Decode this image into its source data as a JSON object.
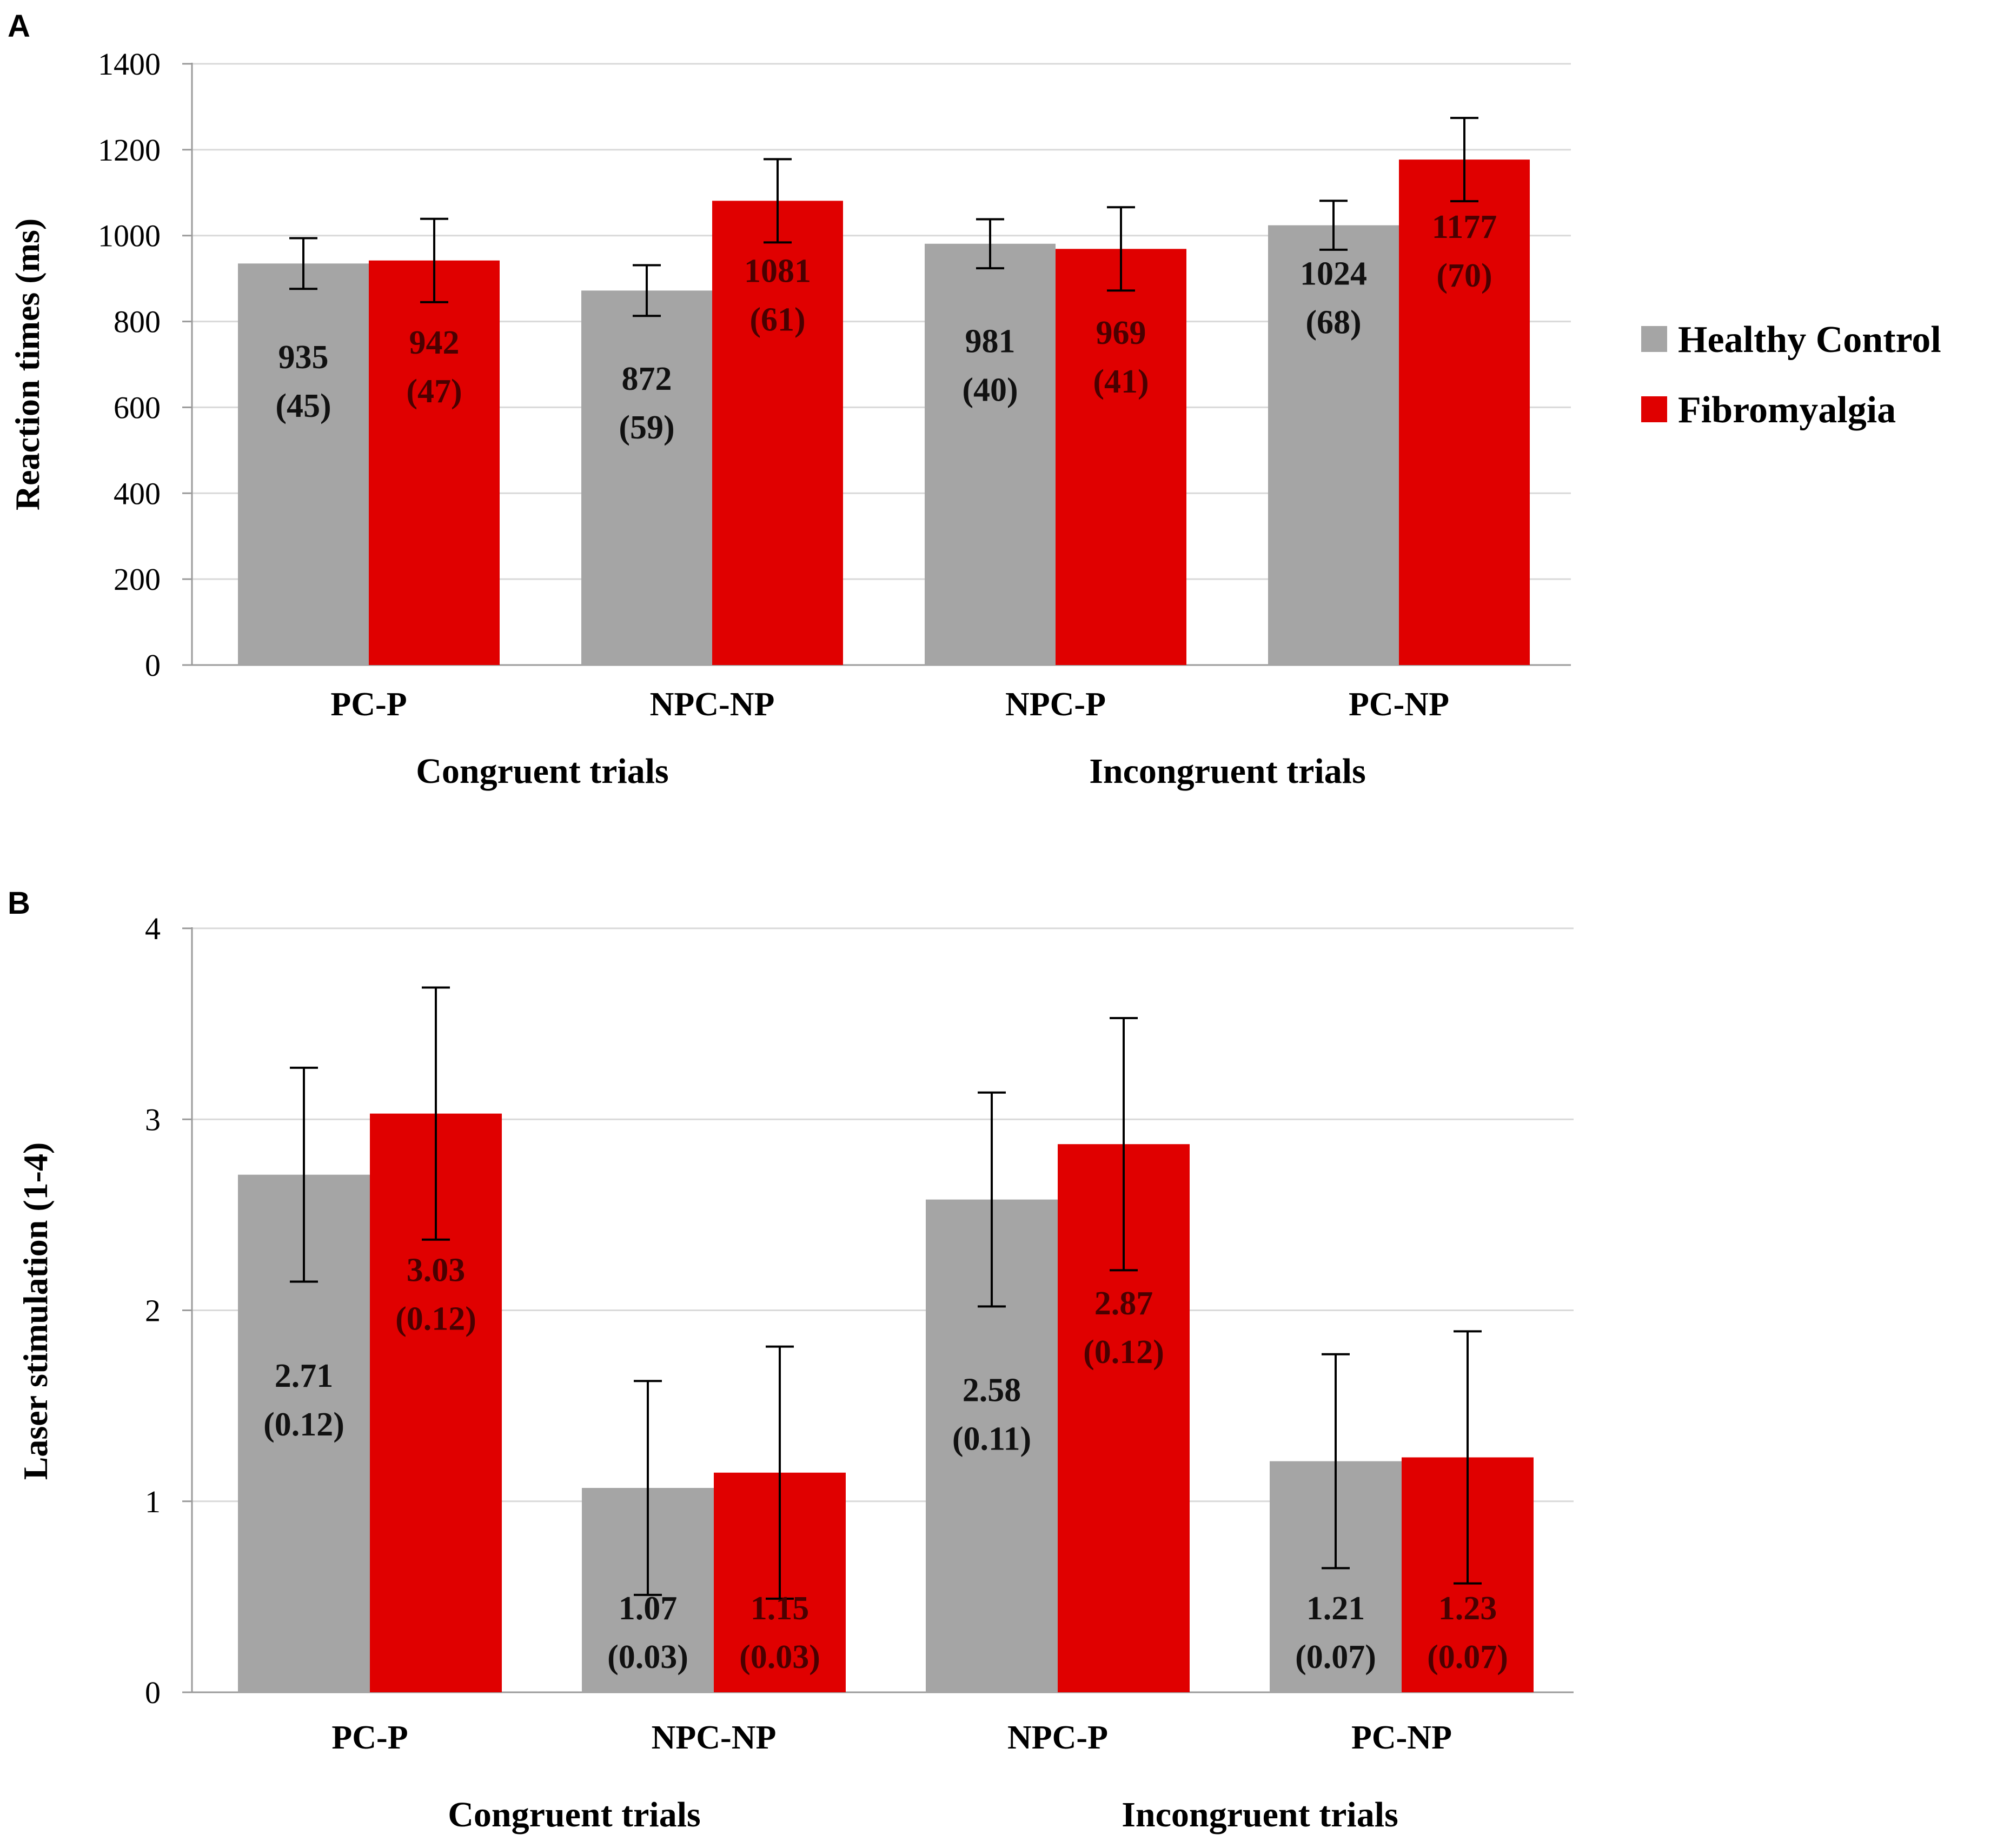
{
  "legend": {
    "items": [
      {
        "label": "Healthy Control",
        "color": "#a5a5a5"
      },
      {
        "label": "Fibromyalgia",
        "color": "#e00000"
      }
    ]
  },
  "chart_data": [
    {
      "panel": "A",
      "type": "bar",
      "title": "",
      "xlabel": "",
      "ylabel": "Reaction times (ms)",
      "ylim": [
        0,
        1400
      ],
      "yticks": [
        "0",
        "200",
        "400",
        "600",
        "800",
        "1000",
        "1200",
        "1400"
      ],
      "grid": true,
      "categories": [
        "PC-P",
        "NPC-NP",
        "NPC-P",
        "PC-NP"
      ],
      "groups": [
        {
          "label": "Congruent trials",
          "categories": [
            "PC-P",
            "NPC-NP"
          ]
        },
        {
          "label": "Incongruent trials",
          "categories": [
            "NPC-P",
            "PC-NP"
          ]
        }
      ],
      "series": [
        {
          "name": "Healthy Control",
          "color": "#a5a5a5",
          "values": [
            935,
            872,
            981,
            1024
          ],
          "error": [
            59,
            59,
            57,
            57
          ],
          "labels": [
            [
              "935",
              "(45)"
            ],
            [
              "872",
              "(59)"
            ],
            [
              "981",
              "(40)"
            ],
            [
              "1024",
              "(68)"
            ]
          ]
        },
        {
          "name": "Fibromyalgia",
          "color": "#e00000",
          "values": [
            942,
            1081,
            969,
            1177
          ],
          "error": [
            97,
            97,
            97,
            97
          ],
          "labels": [
            [
              "942",
              "(47)"
            ],
            [
              "1081",
              "(61)"
            ],
            [
              "969",
              "(41)"
            ],
            [
              "1177",
              "(70)"
            ]
          ]
        }
      ]
    },
    {
      "panel": "B",
      "type": "bar",
      "title": "",
      "xlabel": "",
      "ylabel": "Laser stimulation (1-4)",
      "ylim": [
        0,
        4
      ],
      "yticks": [
        "0",
        "1",
        "2",
        "3",
        "4"
      ],
      "grid": true,
      "categories": [
        "PC-P",
        "NPC-NP",
        "NPC-P",
        "PC-NP"
      ],
      "groups": [
        {
          "label": "Congruent trials",
          "categories": [
            "PC-P",
            "NPC-NP"
          ]
        },
        {
          "label": "Incongruent trials",
          "categories": [
            "NPC-P",
            "PC-NP"
          ]
        }
      ],
      "series": [
        {
          "name": "Healthy Control",
          "color": "#a5a5a5",
          "values": [
            2.71,
            1.07,
            2.58,
            1.21
          ],
          "error": [
            0.56,
            0.56,
            0.56,
            0.56
          ],
          "labels": [
            [
              "2.71",
              "(0.12)"
            ],
            [
              "1.07",
              "(0.03)"
            ],
            [
              "2.58",
              "(0.11)"
            ],
            [
              "1.21",
              "(0.07)"
            ]
          ]
        },
        {
          "name": "Fibromyalgia",
          "color": "#e00000",
          "values": [
            3.03,
            1.15,
            2.87,
            1.23
          ],
          "error": [
            0.66,
            0.66,
            0.66,
            0.66
          ],
          "labels": [
            [
              "3.03",
              "(0.12)"
            ],
            [
              "1.15",
              "(0.03)"
            ],
            [
              "2.87",
              "(0.12)"
            ],
            [
              "1.23",
              "(0.07)"
            ]
          ]
        }
      ]
    }
  ]
}
